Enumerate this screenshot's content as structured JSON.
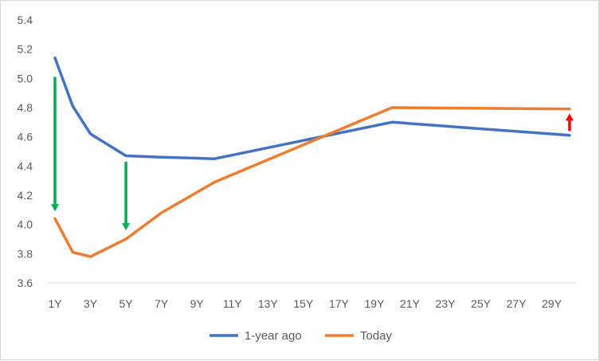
{
  "chart_data": {
    "type": "line",
    "title": "",
    "xlabel": "",
    "ylabel": "",
    "ylim": [
      3.6,
      5.4
    ],
    "yticks": [
      3.6,
      3.8,
      4.0,
      4.2,
      4.4,
      4.6,
      4.8,
      5.0,
      5.2,
      5.4
    ],
    "ytick_labels": [
      "3.6",
      "3.8",
      "4.0",
      "4.2",
      "4.4",
      "4.6",
      "4.8",
      "5.0",
      "5.2",
      "5.4"
    ],
    "x_labels": [
      "1Y",
      "3Y",
      "5Y",
      "7Y",
      "9Y",
      "11Y",
      "13Y",
      "15Y",
      "17Y",
      "19Y",
      "21Y",
      "23Y",
      "25Y",
      "27Y",
      "29Y"
    ],
    "x": [
      1,
      2,
      3,
      5,
      7,
      10,
      20,
      30
    ],
    "series": [
      {
        "name": "1-year ago",
        "color": "#4472c4",
        "values": [
          5.14,
          4.81,
          4.62,
          4.47,
          4.46,
          4.45,
          4.7,
          4.61
        ]
      },
      {
        "name": "Today",
        "color": "#ed7d31",
        "values": [
          4.04,
          3.81,
          3.78,
          3.9,
          4.08,
          4.29,
          4.8,
          4.79
        ]
      }
    ],
    "grid": false,
    "legend": "bottom-center",
    "annotations": [
      {
        "type": "arrow",
        "color": "#00b050",
        "x": 1,
        "from": 5.01,
        "to": 4.09
      },
      {
        "type": "arrow",
        "color": "#00b050",
        "x": 5,
        "from": 4.43,
        "to": 3.96
      },
      {
        "type": "arrow",
        "color": "#ff0000",
        "x": 30,
        "from": 4.64,
        "to": 4.76
      }
    ]
  }
}
